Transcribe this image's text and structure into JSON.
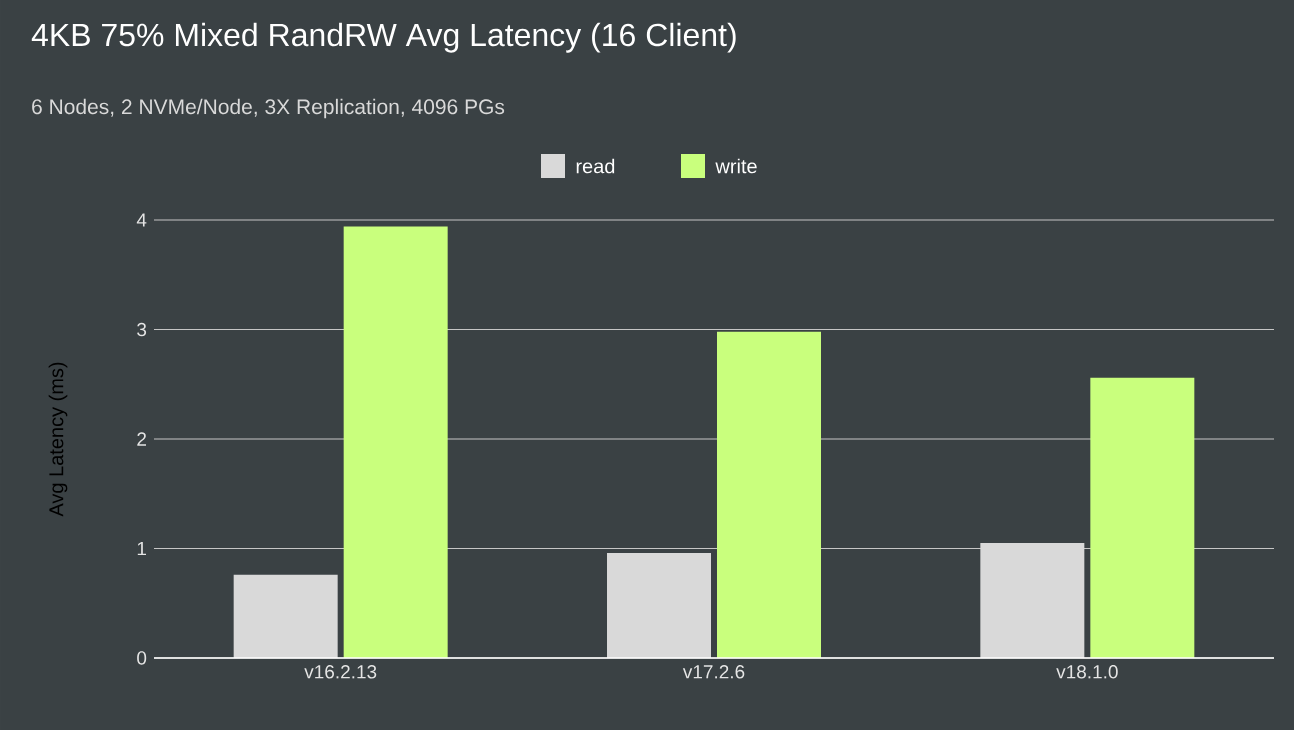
{
  "chart_data": {
    "type": "bar",
    "title": "4KB 75% Mixed RandRW Avg Latency (16 Client)",
    "subtitle": "6 Nodes, 2 NVMe/Node, 3X Replication, 4096 PGs",
    "ylabel": "Avg Latency (ms)",
    "categories": [
      "v16.2.13",
      "v17.2.6",
      "v18.1.0"
    ],
    "series": [
      {
        "name": "read",
        "color": "#d9d9d9",
        "values": [
          0.76,
          0.96,
          1.05
        ]
      },
      {
        "name": "write",
        "color": "#c9ff7d",
        "values": [
          3.94,
          2.98,
          2.56
        ]
      }
    ],
    "ylim": [
      0,
      4
    ],
    "yticks": [
      0,
      1,
      2,
      3,
      4
    ],
    "grid": "y",
    "legend": "top"
  }
}
